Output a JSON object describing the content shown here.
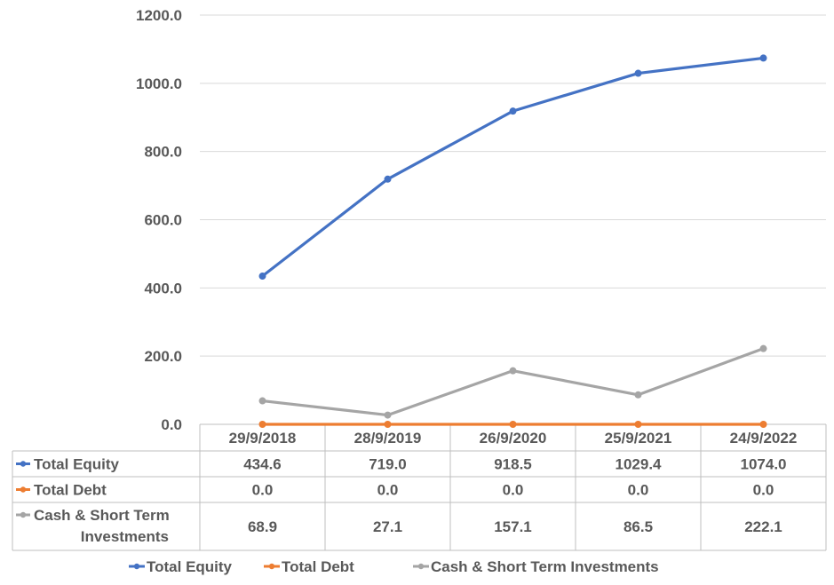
{
  "chart_data": {
    "type": "line",
    "categories": [
      "29/9/2018",
      "28/9/2019",
      "26/9/2020",
      "25/9/2021",
      "24/9/2022"
    ],
    "series": [
      {
        "name": "Total Equity",
        "values": [
          434.6,
          719.0,
          918.5,
          1029.4,
          1074.0
        ],
        "display": [
          "434.6",
          "719.0",
          "918.5",
          "1029.4",
          "1074.0"
        ],
        "color": "#4472C4"
      },
      {
        "name": "Total Debt",
        "values": [
          0.0,
          0.0,
          0.0,
          0.0,
          0.0
        ],
        "display": [
          "0.0",
          "0.0",
          "0.0",
          "0.0",
          "0.0"
        ],
        "color": "#ED7D31"
      },
      {
        "name": "Cash & Short Term Investments",
        "label_lines": [
          "Cash & Short Term",
          "Investments"
        ],
        "values": [
          68.9,
          27.1,
          157.1,
          86.5,
          222.1
        ],
        "display": [
          "68.9",
          "27.1",
          "157.1",
          "86.5",
          "222.1"
        ],
        "color": "#A5A5A5"
      }
    ],
    "ylim": [
      0,
      1200
    ],
    "yticks": [
      "0.0",
      "200.0",
      "400.0",
      "600.0",
      "800.0",
      "1000.0",
      "1200.0"
    ],
    "grid": true,
    "data_table": true,
    "legend": "bottom"
  }
}
